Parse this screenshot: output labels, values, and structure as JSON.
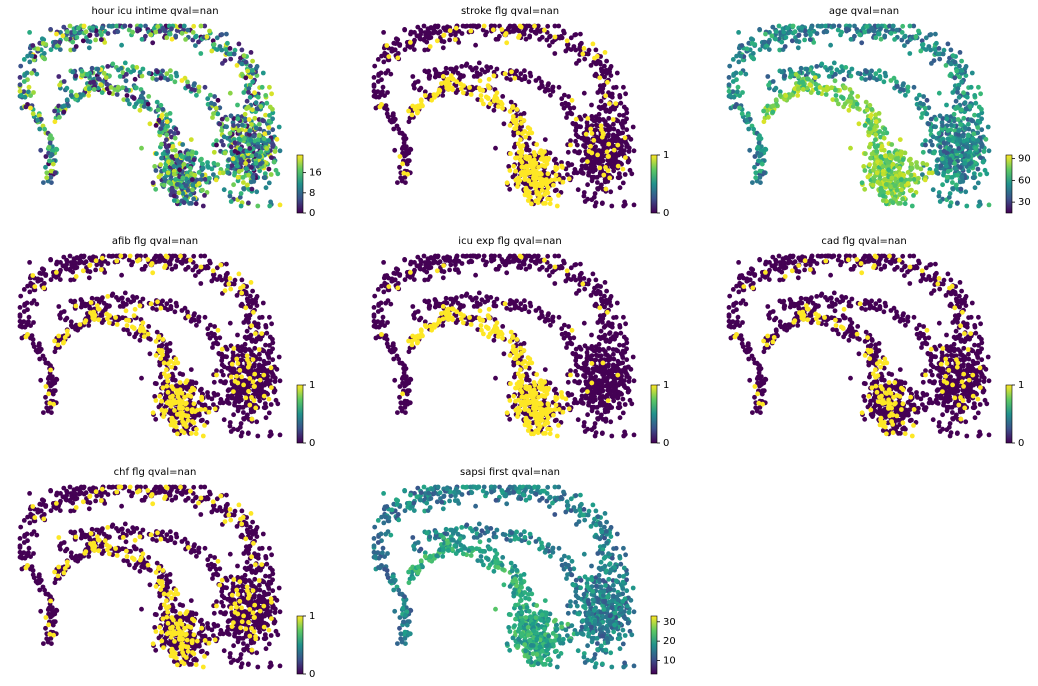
{
  "chart_data": [
    {
      "type": "scatter",
      "title": "hour icu intime qval=nan",
      "colormap": "viridis",
      "color_kind": "continuous",
      "color_range": [
        0,
        23
      ],
      "colorbar_ticks": [
        "0",
        "8",
        "16"
      ],
      "legend": "bottom-right colorbar",
      "grid": false
    },
    {
      "type": "scatter",
      "title": "stroke flg qval=nan",
      "colormap": "viridis",
      "color_kind": "binary",
      "color_range": [
        0,
        1
      ],
      "positive_fraction": 0.18,
      "colorbar_ticks": [
        "0",
        "1"
      ],
      "legend": "bottom-right colorbar",
      "grid": false
    },
    {
      "type": "scatter",
      "title": "age qval=nan",
      "colormap": "viridis",
      "color_kind": "continuous",
      "color_range": [
        15,
        95
      ],
      "colorbar_ticks": [
        "30",
        "60",
        "90"
      ],
      "legend": "bottom-right colorbar",
      "grid": false
    },
    {
      "type": "scatter",
      "title": "afib flg qval=nan",
      "colormap": "viridis",
      "color_kind": "binary",
      "color_range": [
        0,
        1
      ],
      "positive_fraction": 0.15,
      "colorbar_ticks": [
        "0",
        "1"
      ],
      "legend": "bottom-right colorbar",
      "grid": false
    },
    {
      "type": "scatter",
      "title": "icu exp flg qval=nan",
      "colormap": "viridis",
      "color_kind": "binary",
      "color_range": [
        0,
        1
      ],
      "positive_fraction": 0.12,
      "colorbar_ticks": [
        "0",
        "1"
      ],
      "legend": "bottom-right colorbar",
      "grid": false
    },
    {
      "type": "scatter",
      "title": "cad flg qval=nan",
      "colormap": "viridis",
      "color_kind": "binary",
      "color_range": [
        0,
        1
      ],
      "positive_fraction": 0.1,
      "colorbar_ticks": [
        "0",
        "1"
      ],
      "legend": "bottom-right colorbar",
      "grid": false
    },
    {
      "type": "scatter",
      "title": "chf flg qval=nan",
      "colormap": "viridis",
      "color_kind": "binary",
      "color_range": [
        0,
        1
      ],
      "positive_fraction": 0.15,
      "colorbar_ticks": [
        "0",
        "1"
      ],
      "legend": "bottom-right colorbar",
      "grid": false
    },
    {
      "type": "scatter",
      "title": "sapsi first qval=nan",
      "colormap": "viridis",
      "color_kind": "continuous",
      "color_range": [
        3,
        33
      ],
      "colorbar_ticks": [
        "10",
        "20",
        "30"
      ],
      "legend": "bottom-right colorbar",
      "grid": false
    }
  ],
  "colors": {
    "viridis_low": "#440154",
    "viridis_mid": "#21918c",
    "viridis_high": "#fde725"
  }
}
